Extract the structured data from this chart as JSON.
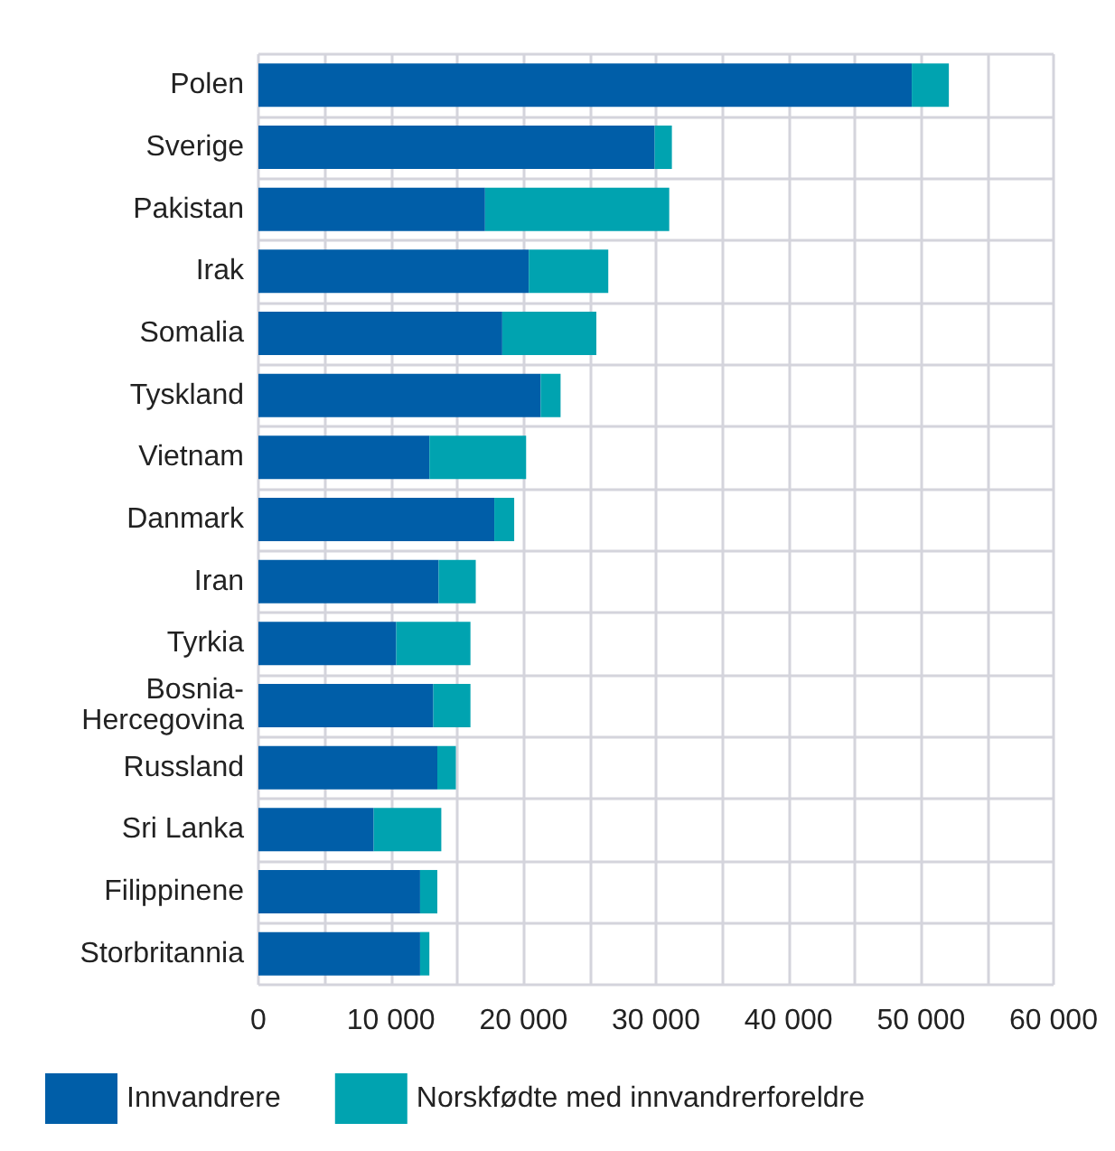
{
  "chart_data": {
    "type": "bar",
    "orientation": "horizontal",
    "stacked": true,
    "categories": [
      "Polen",
      "Sverige",
      "Pakistan",
      "Irak",
      "Somalia",
      "Tyskland",
      "Vietnam",
      "Danmark",
      "Iran",
      "Tyrkia",
      "Bosnia-Hercegovina",
      "Russland",
      "Sri Lanka",
      "Filippinene",
      "Storbritannia"
    ],
    "series": [
      {
        "name": "Innvandrere",
        "color": "#005ea8",
        "values": [
          49300,
          29900,
          17100,
          20400,
          18400,
          21300,
          12900,
          17800,
          13600,
          10400,
          13200,
          13500,
          8700,
          12200,
          12200
        ]
      },
      {
        "name": "Norskfødte med innvandrerforeldre",
        "color": "#00a3b0",
        "values": [
          2800,
          1300,
          13900,
          6000,
          7100,
          1500,
          7300,
          1500,
          2800,
          5600,
          2800,
          1400,
          5100,
          1300,
          700
        ]
      }
    ],
    "xlim": [
      0,
      60000
    ],
    "xticks": [
      0,
      {
        "value": 5000,
        "label": null
      },
      {
        "value": 10000,
        "label": "10 000"
      },
      {
        "value": 15000,
        "label": null
      },
      {
        "value": 20000,
        "label": "20 000"
      },
      {
        "value": 25000,
        "label": null
      },
      {
        "value": 30000,
        "label": "30 000"
      },
      {
        "value": 35000,
        "label": null
      },
      {
        "value": 40000,
        "label": "40 000"
      },
      {
        "value": 45000,
        "label": null
      },
      {
        "value": 50000,
        "label": "50 000"
      },
      {
        "value": 55000,
        "label": null
      },
      {
        "value": 60000,
        "label": "60 000"
      }
    ],
    "grid": true,
    "legend": "bottom left"
  }
}
